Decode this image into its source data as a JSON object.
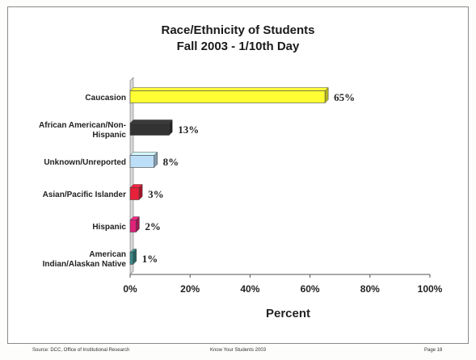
{
  "chart_data": {
    "type": "bar",
    "orientation": "horizontal",
    "title": "Race/Ethnicity of Students",
    "subtitle": "Fall 2003 - 1/10th Day",
    "xlabel": "Percent",
    "ylabel": "",
    "xlim": [
      0,
      100
    ],
    "xticks": [
      "0%",
      "20%",
      "40%",
      "60%",
      "80%",
      "100%"
    ],
    "categories": [
      "Caucasion",
      "African American/Non-Hispanic",
      "Unknown/Unreported",
      "Asian/Pacific Islander",
      "Hispanic",
      "American Indian/Alaskan Native"
    ],
    "category_label_lines": [
      [
        "Caucasion"
      ],
      [
        "African American/Non-",
        "Hispanic"
      ],
      [
        "Unknown/Unreported"
      ],
      [
        "Asian/Pacific Islander"
      ],
      [
        "Hispanic"
      ],
      [
        "American",
        "Indian/Alaskan Native"
      ]
    ],
    "values": [
      65,
      13,
      8,
      3,
      2,
      1
    ],
    "data_labels": [
      "65%",
      "13%",
      "8%",
      "3%",
      "2%",
      "1%"
    ],
    "colors": [
      "#ffff33",
      "#333333",
      "#bcdff7",
      "#e8203a",
      "#e0227a",
      "#3a8c8c"
    ],
    "grid": false,
    "legend": "none"
  },
  "footer": {
    "left": "Source: DCC, Office of Institutional Research",
    "center": "Know Your Students 2003",
    "right": "Page 18"
  }
}
